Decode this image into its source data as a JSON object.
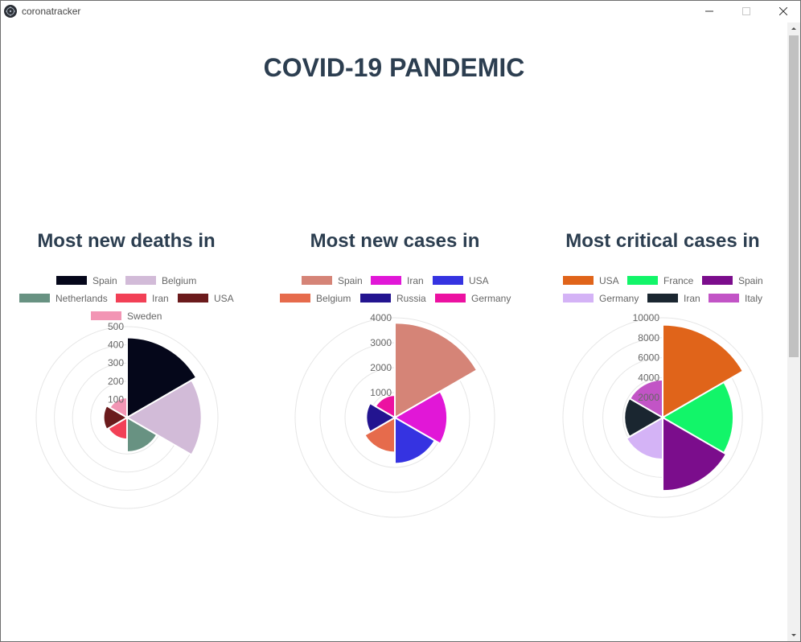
{
  "window": {
    "title": "coronatracker"
  },
  "page": {
    "title": "COVID-19 PANDEMIC"
  },
  "chart_data": [
    {
      "type": "polarArea",
      "title": "Most new deaths in",
      "labels": [
        "Spain",
        "Belgium",
        "Netherlands",
        "Iran",
        "USA",
        "Sweden"
      ],
      "values": [
        440,
        410,
        190,
        120,
        130,
        110
      ],
      "colors": [
        "#05071a",
        "#d2bbd8",
        "#689282",
        "#f24056",
        "#6b1a1c",
        "#f295b4"
      ],
      "r_max": 500,
      "ticks": [
        "100",
        "200",
        "300",
        "400",
        "500"
      ]
    },
    {
      "type": "polarArea",
      "title": "Most new cases in",
      "labels": [
        "Spain",
        "Iran",
        "USA",
        "Belgium",
        "Russia",
        "Germany"
      ],
      "values": [
        3800,
        2100,
        1850,
        1400,
        1150,
        900
      ],
      "colors": [
        "#d58477",
        "#e117d7",
        "#3533e1",
        "#e66b4c",
        "#231490",
        "#ec11a1"
      ],
      "r_max": 4000,
      "ticks": [
        "1000",
        "2000",
        "3000",
        "4000"
      ]
    },
    {
      "type": "polarArea",
      "title": "Most critical cases in",
      "labels": [
        "USA",
        "France",
        "Spain",
        "Germany",
        "Iran",
        "Italy"
      ],
      "values": [
        9300,
        7100,
        7350,
        4200,
        3850,
        3800
      ],
      "colors": [
        "#e0641a",
        "#12f569",
        "#7b0d8c",
        "#d4b3f6",
        "#1a2630",
        "#c254c6"
      ],
      "r_max": 10000,
      "ticks": [
        "2000",
        "4000",
        "6000",
        "8000",
        "10000"
      ]
    }
  ]
}
